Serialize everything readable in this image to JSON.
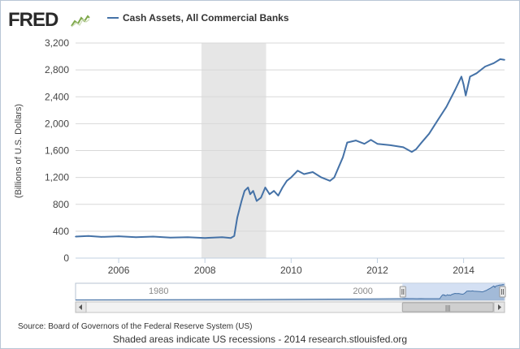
{
  "brand": {
    "name": "FRED"
  },
  "chart_data": {
    "type": "line",
    "title": "",
    "xlabel": "",
    "ylabel": "(Billions of U.S. Dollars)",
    "xlim": [
      2005.0,
      2014.95
    ],
    "ylim": [
      0,
      3200
    ],
    "yticks": [
      "0",
      "400",
      "800",
      "1,200",
      "1,600",
      "2,000",
      "2,400",
      "2,800",
      "3,200"
    ],
    "xticks": [
      "2006",
      "2008",
      "2010",
      "2012",
      "2014"
    ],
    "grid": true,
    "legend_position": "top-left",
    "line_color": "#4572a7",
    "recession_color": "#e6e6e6",
    "recessions": [
      {
        "start": 2007.92,
        "end": 2009.42
      }
    ],
    "series": [
      {
        "name": "Cash Assets, All Commercial Banks",
        "points": [
          [
            2005.0,
            320
          ],
          [
            2005.3,
            330
          ],
          [
            2005.6,
            315
          ],
          [
            2006.0,
            325
          ],
          [
            2006.4,
            310
          ],
          [
            2006.8,
            320
          ],
          [
            2007.2,
            305
          ],
          [
            2007.6,
            310
          ],
          [
            2008.0,
            300
          ],
          [
            2008.4,
            310
          ],
          [
            2008.6,
            300
          ],
          [
            2008.68,
            330
          ],
          [
            2008.75,
            600
          ],
          [
            2008.85,
            850
          ],
          [
            2008.92,
            1000
          ],
          [
            2009.0,
            1050
          ],
          [
            2009.05,
            950
          ],
          [
            2009.12,
            1000
          ],
          [
            2009.2,
            850
          ],
          [
            2009.3,
            900
          ],
          [
            2009.4,
            1050
          ],
          [
            2009.5,
            950
          ],
          [
            2009.6,
            1000
          ],
          [
            2009.7,
            930
          ],
          [
            2009.8,
            1050
          ],
          [
            2009.9,
            1150
          ],
          [
            2010.0,
            1200
          ],
          [
            2010.15,
            1300
          ],
          [
            2010.3,
            1250
          ],
          [
            2010.5,
            1280
          ],
          [
            2010.7,
            1200
          ],
          [
            2010.9,
            1150
          ],
          [
            2011.0,
            1200
          ],
          [
            2011.1,
            1350
          ],
          [
            2011.2,
            1500
          ],
          [
            2011.3,
            1720
          ],
          [
            2011.5,
            1750
          ],
          [
            2011.7,
            1700
          ],
          [
            2011.85,
            1760
          ],
          [
            2012.0,
            1700
          ],
          [
            2012.3,
            1680
          ],
          [
            2012.6,
            1650
          ],
          [
            2012.8,
            1580
          ],
          [
            2012.9,
            1620
          ],
          [
            2013.0,
            1700
          ],
          [
            2013.2,
            1850
          ],
          [
            2013.4,
            2050
          ],
          [
            2013.6,
            2250
          ],
          [
            2013.8,
            2500
          ],
          [
            2013.95,
            2700
          ],
          [
            2014.0,
            2580
          ],
          [
            2014.05,
            2420
          ],
          [
            2014.15,
            2700
          ],
          [
            2014.3,
            2750
          ],
          [
            2014.5,
            2850
          ],
          [
            2014.7,
            2900
          ],
          [
            2014.85,
            2960
          ],
          [
            2014.95,
            2950
          ]
        ]
      }
    ],
    "navigator": {
      "labels": [
        "1980",
        "2000"
      ],
      "range": [
        1973,
        2015
      ],
      "selected": [
        2005,
        2015
      ],
      "scroll_grip": "|||"
    }
  },
  "footer": {
    "source": "Source: Board of Governors of the Federal Reserve System (US)",
    "note": "Shaded areas indicate US recessions - 2014 research.stlouisfed.org"
  }
}
